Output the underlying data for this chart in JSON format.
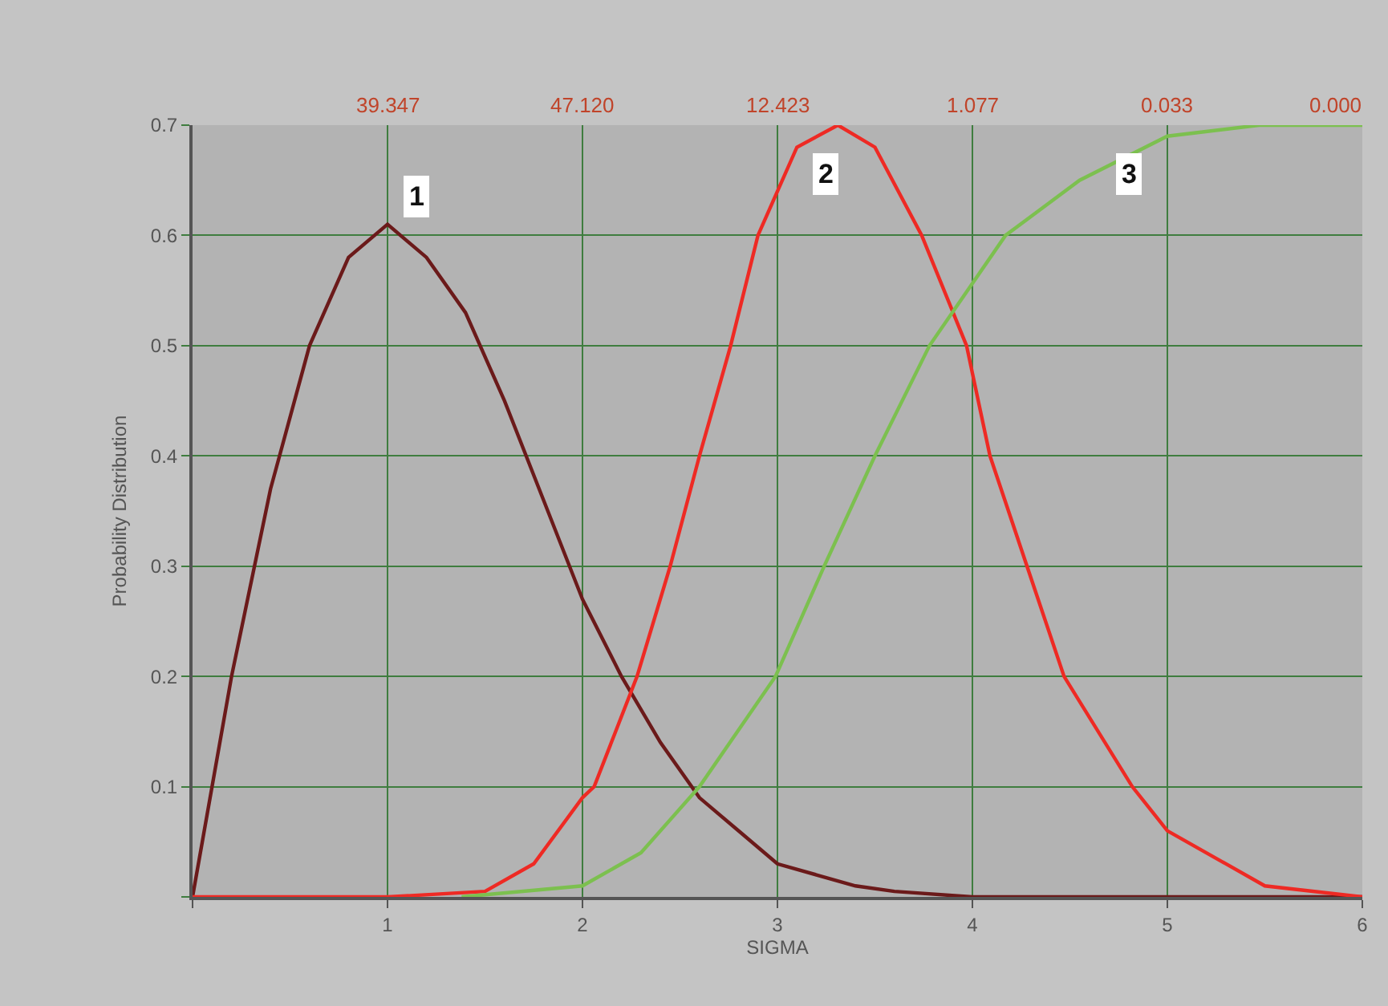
{
  "chart_data": {
    "type": "line",
    "xlabel": "SIGMA",
    "ylabel": "Probability Distribution",
    "xlim": [
      0,
      6
    ],
    "xticks": [
      {
        "value": 0,
        "label": null
      },
      1,
      2,
      3,
      4,
      5,
      6
    ],
    "ylim": [
      0,
      0.7
    ],
    "yticks": [
      {
        "value": 0,
        "label": null
      },
      0.1,
      0.2,
      0.3,
      0.4,
      0.5,
      0.6,
      0.7
    ],
    "grid": true,
    "line_style": "solid",
    "series": [
      {
        "color": "#6b1a1a",
        "x": [
          0,
          0.2,
          0.4,
          0.6,
          0.8,
          1.0,
          1.2,
          1.4,
          1.6,
          1.8,
          2.0,
          2.2,
          2.4,
          2.6,
          2.8,
          3.0,
          3.2,
          3.4,
          3.6,
          4.0,
          4.5,
          6
        ],
        "values": [
          0,
          0.2,
          0.37,
          0.5,
          0.58,
          0.61,
          0.58,
          0.53,
          0.45,
          0.36,
          0.27,
          0.2,
          0.14,
          0.09,
          0.06,
          0.03,
          0.02,
          0.01,
          0.005,
          0,
          0,
          0
        ]
      },
      {
        "color": "#ee2a24",
        "x": [
          0,
          1,
          1.5,
          1.75,
          2.0,
          2.06,
          2.28,
          2.45,
          2.6,
          2.76,
          2.9,
          3.1,
          3.31,
          3.5,
          3.74,
          3.97,
          4.09,
          4.28,
          4.47,
          4.82,
          5.0,
          5.5,
          6
        ],
        "values": [
          0,
          0,
          0.005,
          0.03,
          0.09,
          0.1,
          0.2,
          0.3,
          0.4,
          0.5,
          0.6,
          0.68,
          0.7,
          0.68,
          0.6,
          0.5,
          0.4,
          0.3,
          0.2,
          0.1,
          0.06,
          0.01,
          0
        ]
      },
      {
        "color": "#7cc04f",
        "x": [
          1.38,
          2,
          2.3,
          2.6,
          2.99,
          3.24,
          3.5,
          3.78,
          4.17,
          4.55,
          5.0,
          5.47,
          6
        ],
        "values": [
          0,
          0.01,
          0.04,
          0.1,
          0.2,
          0.3,
          0.4,
          0.5,
          0.6,
          0.65,
          0.69,
          0.7,
          0.7
        ]
      }
    ],
    "annotations": [
      {
        "text": "1",
        "x": 1.15,
        "y": 0.635
      },
      {
        "text": "2",
        "x": 3.25,
        "y": 0.655
      },
      {
        "text": "3",
        "x": 4.8,
        "y": 0.655
      },
      "39.347",
      "47.120",
      "12.423",
      "1.077",
      "0.033",
      "0.000"
    ]
  }
}
